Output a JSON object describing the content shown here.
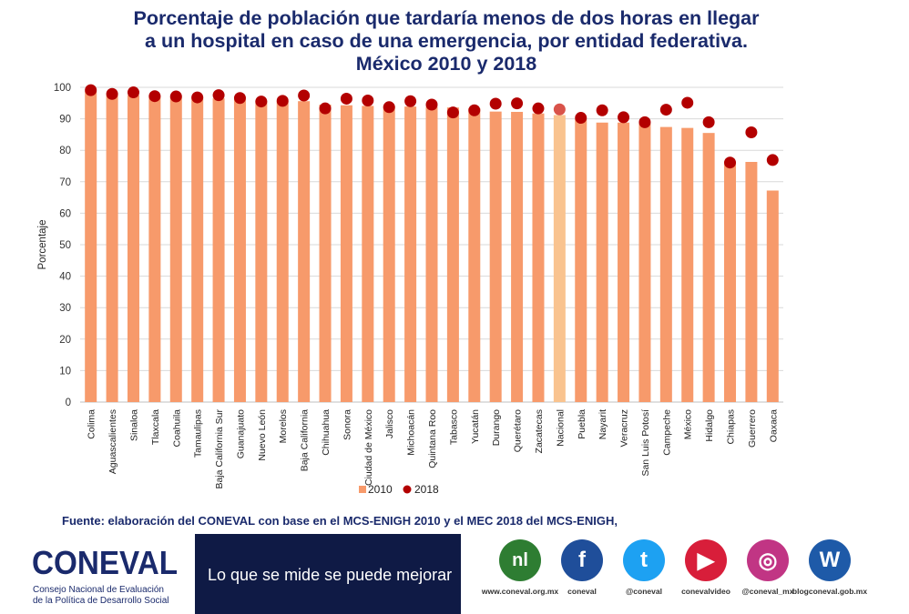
{
  "title_lines": [
    "Porcentaje de población que tardaría menos de dos horas en llegar",
    "a un hospital en caso de una emergencia, por entidad federativa.",
    "México 2010 y 2018"
  ],
  "chart_data": {
    "type": "bar",
    "ylabel": "Porcentaje",
    "ylim": [
      0,
      100
    ],
    "yticks": [
      0,
      10,
      20,
      30,
      40,
      50,
      60,
      70,
      80,
      90,
      100
    ],
    "grid": true,
    "legend_position": "bottom",
    "categories": [
      "Colima",
      "Aguascalientes",
      "Sinaloa",
      "Tlaxcala",
      "Coahuila",
      "Tamaulipas",
      "Baja California Sur",
      "Guanajuato",
      "Nuevo León",
      "Morelos",
      "Baja California",
      "Chihuahua",
      "Sonora",
      "Ciudad de México",
      "Jalisco",
      "Michoacán",
      "Quintana Roo",
      "Tabasco",
      "Yucatán",
      "Durango",
      "Querétaro",
      "Zacatecas",
      "Nacional",
      "Puebla",
      "Nayarit",
      "Veracruz",
      "San Luis Potosí",
      "Campeche",
      "México",
      "Hidalgo",
      "Chiapas",
      "Guerrero",
      "Oaxaca"
    ],
    "highlight_category": "Nacional",
    "series": [
      {
        "name": "2010",
        "type": "bar",
        "color": "#f79a6b",
        "highlight_color": "#f9c38f",
        "values": [
          98.8,
          97.6,
          97.5,
          97.2,
          97.0,
          96.8,
          96.5,
          96.4,
          95.6,
          95.6,
          95.6,
          94.5,
          94.3,
          94.1,
          94.0,
          93.9,
          93.8,
          93.6,
          93.4,
          92.3,
          92.2,
          91.7,
          91.2,
          89.9,
          88.8,
          88.8,
          88.6,
          87.4,
          87.1,
          85.5,
          76.4,
          76.3,
          67.2
        ]
      },
      {
        "name": "2018",
        "type": "scatter",
        "color": "#b30000",
        "highlight_color": "#d9534a",
        "values": [
          99.1,
          97.9,
          98.4,
          97.2,
          97.1,
          96.8,
          97.5,
          96.6,
          95.5,
          95.7,
          97.4,
          93.3,
          96.4,
          95.8,
          93.7,
          95.6,
          94.5,
          92.0,
          92.7,
          94.8,
          94.9,
          93.3,
          93.0,
          90.3,
          92.7,
          90.5,
          88.9,
          92.9,
          95.1,
          88.9,
          76.1,
          85.7,
          76.9
        ]
      }
    ]
  },
  "source_note": "Fuente: elaboración del CONEVAL con base en el MCS-ENIGH 2010 y el MEC 2018 del MCS-ENIGH,",
  "logo": {
    "name": "CONEVAL",
    "sub1": "Consejo Nacional de Evaluación",
    "sub2": "de la Política de Desarrollo Social"
  },
  "slogan": "Lo que se mide se puede mejorar",
  "social": [
    {
      "icon": "nl-logo-icon",
      "label": "www.coneval.org.mx",
      "color": "#2e7d32",
      "glyph": "nl"
    },
    {
      "icon": "facebook-icon",
      "label": "coneval",
      "color": "#1f4e9a",
      "glyph": "f"
    },
    {
      "icon": "twitter-icon",
      "label": "@coneval",
      "color": "#1da1f2",
      "glyph": "t"
    },
    {
      "icon": "youtube-icon",
      "label": "conevalvideo",
      "color": "#d81e3a",
      "glyph": "▶"
    },
    {
      "icon": "instagram-icon",
      "label": "@coneval_mx",
      "color": "#c13584",
      "glyph": "◎"
    },
    {
      "icon": "wordpress-icon",
      "label": "blogconeval.gob.mx",
      "color": "#1e5aa8",
      "glyph": "W"
    }
  ]
}
